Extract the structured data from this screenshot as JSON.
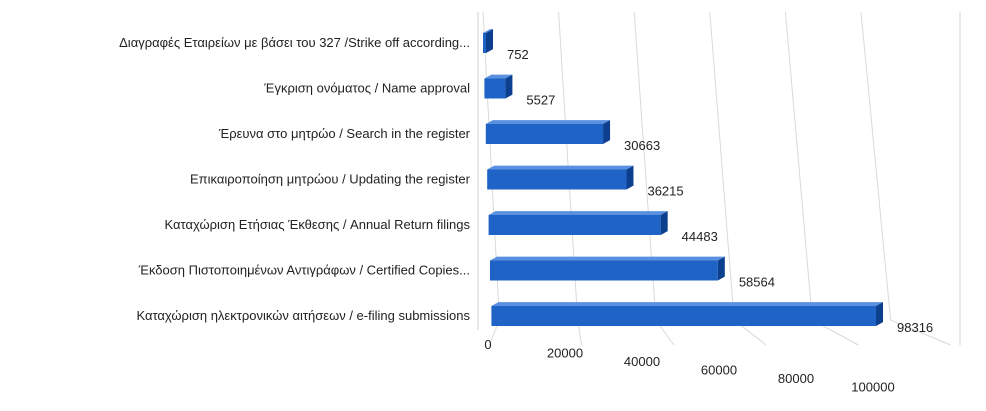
{
  "chart_data": {
    "type": "bar",
    "orientation": "horizontal",
    "style": "3d",
    "categories": [
      "Διαγραφές Εταιρείων με βάσει του 327 /Strike off according...",
      "Έγκριση ονόματος / Name approval",
      "Έρευνα στο μητρώο / Search in the register",
      "Επικαιροποίηση μητρώου / Updating the register",
      "Καταχώριση Ετήσιας Έκθεσης / Annual Return filings",
      "Έκδοση Πιστοποιημένων Αντιγράφων / Certified Copies...",
      "Καταχώριση ηλεκτρονικών αιτήσεων / e-filing submissions"
    ],
    "values": [
      752,
      5527,
      30663,
      36215,
      44483,
      58564,
      98316
    ],
    "value_labels": [
      "752",
      "5527",
      "30663",
      "36215",
      "44483",
      "58564",
      "98316"
    ],
    "xlim": [
      0,
      100000
    ],
    "xticks": [
      "0",
      "20000",
      "40000",
      "60000",
      "80000",
      "100000"
    ],
    "xtick_values": [
      0,
      20000,
      40000,
      60000,
      80000,
      100000
    ],
    "grid": true,
    "legend": "none",
    "colors": {
      "bar_front": "#1f63c6",
      "bar_top": "#5a90e0",
      "bar_end": "#0d3f8f",
      "grid": "#d9d9d9"
    }
  }
}
